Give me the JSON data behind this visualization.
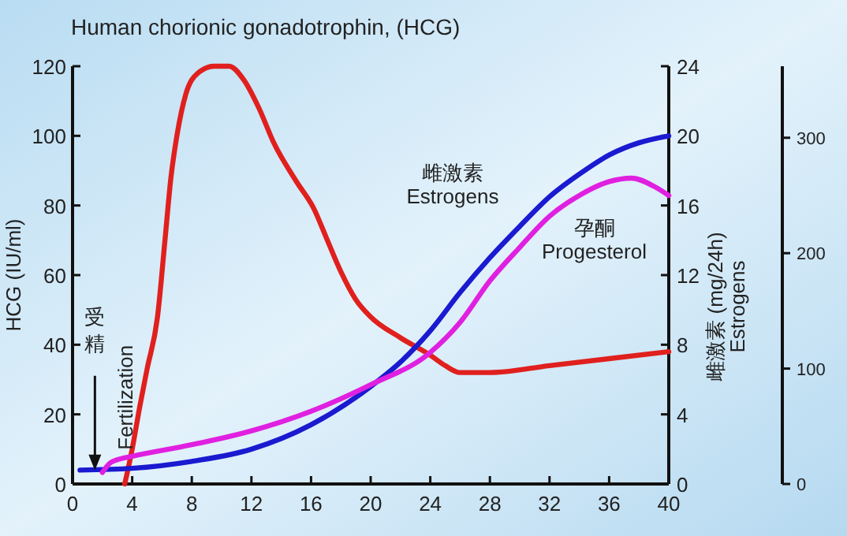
{
  "chart_data": {
    "type": "line",
    "title": "Human chorionic gonadotrophin,  (HCG)",
    "ylabel": "HCG (IU/ml)",
    "y2label": "雌激素 (mg/24h)\nEstrogens",
    "xlim": [
      0,
      40
    ],
    "xticks": [
      0,
      4,
      8,
      12,
      16,
      20,
      24,
      28,
      32,
      36,
      40
    ],
    "ylim": [
      0,
      120
    ],
    "yticks": [
      0,
      20,
      40,
      60,
      80,
      100,
      120
    ],
    "y2lim": [
      0,
      24
    ],
    "y2ticks": [
      0,
      4,
      8,
      12,
      16,
      20,
      24
    ],
    "y3lim": [
      0,
      362
    ],
    "y3ticks": [
      0,
      100,
      200,
      300
    ],
    "grid": false,
    "line_style": "solid",
    "series": [
      {
        "color": "#e0201e",
        "x": [
          3.5,
          4,
          4.5,
          5,
          5.7,
          6.2,
          6.6,
          7,
          7.6,
          8.4,
          9.5,
          10.5,
          11.5,
          12.5,
          13.5,
          15,
          16.2,
          17,
          18,
          19,
          20,
          22,
          24,
          25,
          26,
          28,
          32,
          36,
          40
        ],
        "values": [
          0,
          10,
          22,
          33,
          48,
          70,
          88,
          100,
          112,
          118,
          120,
          120,
          116,
          108,
          98,
          87,
          79,
          71,
          61,
          53,
          48,
          42,
          37,
          34,
          32,
          32,
          34,
          36,
          38
        ]
      },
      {
        "name": "雌激素\nEstrogens",
        "color": "#1a1ad0",
        "axis": "y2",
        "x": [
          0.5,
          4,
          8,
          12,
          16,
          20,
          22,
          24,
          26,
          28,
          30,
          32,
          34,
          36,
          38,
          40
        ],
        "values": [
          0.8,
          0.9,
          1.3,
          2,
          3.4,
          5.6,
          7,
          8.8,
          11,
          13,
          14.8,
          16.5,
          17.8,
          18.9,
          19.6,
          20
        ]
      },
      {
        "name": "孕酮\nProgesterol",
        "color": "#e020e0",
        "axis": "y3",
        "x": [
          2,
          2.5,
          3,
          4,
          8,
          12,
          16,
          20,
          24,
          26,
          28,
          30,
          32,
          34,
          36,
          37.5,
          39,
          40
        ],
        "values": [
          10,
          18,
          21,
          24,
          34,
          46,
          63,
          86,
          114,
          140,
          176,
          205,
          232,
          250,
          262,
          265,
          258,
          250
        ]
      }
    ],
    "annotations": [
      {
        "text": "受精",
        "x": 1.5,
        "y": 3
      },
      {
        "text": "Fertilization",
        "x": 4,
        "y": 3
      }
    ]
  }
}
